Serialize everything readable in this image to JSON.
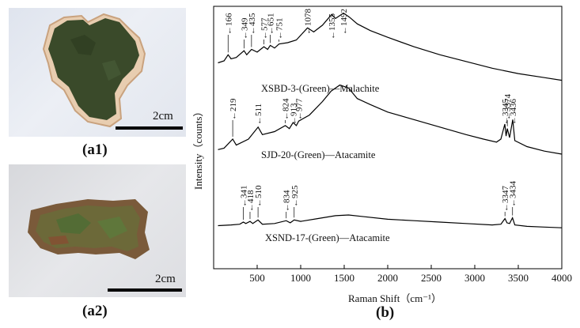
{
  "panels": {
    "a1": {
      "label": "(a1)",
      "scale_label": "2cm"
    },
    "a2": {
      "label": "(a2)",
      "scale_label": "2cm"
    },
    "b": {
      "label": "(b)"
    }
  },
  "colors": {
    "malachite_sample": "#3a4a2a",
    "atacamite_sample": "#6a6a3a",
    "line": "#000000"
  },
  "chart_data": {
    "type": "line",
    "xlabel": "Raman Shift（cm⁻¹）",
    "ylabel": "Intensity（counts）",
    "xlim": [
      0,
      4000
    ],
    "x_ticks": [
      500,
      1000,
      1500,
      2000,
      2500,
      3000,
      3500,
      4000
    ],
    "x_tick_labels": [
      "500",
      "1000",
      "1500",
      "2000",
      "2500",
      "3000",
      "3500",
      "4000"
    ],
    "y_ticks_shown": false,
    "series": [
      {
        "name": "XSBD-3-(Green)—Malachite",
        "offset_level": 3,
        "profile": [
          [
            50,
            0.3
          ],
          [
            120,
            0.33
          ],
          [
            166,
            0.42
          ],
          [
            200,
            0.36
          ],
          [
            260,
            0.38
          ],
          [
            349,
            0.48
          ],
          [
            380,
            0.42
          ],
          [
            435,
            0.5
          ],
          [
            500,
            0.46
          ],
          [
            577,
            0.54
          ],
          [
            620,
            0.5
          ],
          [
            651,
            0.56
          ],
          [
            700,
            0.52
          ],
          [
            751,
            0.58
          ],
          [
            850,
            0.6
          ],
          [
            950,
            0.64
          ],
          [
            1078,
            0.82
          ],
          [
            1150,
            0.76
          ],
          [
            1250,
            0.86
          ],
          [
            1355,
            1.02
          ],
          [
            1400,
            0.96
          ],
          [
            1492,
            1.04
          ],
          [
            1560,
            0.98
          ],
          [
            1650,
            0.88
          ],
          [
            1800,
            0.78
          ],
          [
            2000,
            0.68
          ],
          [
            2300,
            0.54
          ],
          [
            2600,
            0.42
          ],
          [
            2900,
            0.32
          ],
          [
            3200,
            0.22
          ],
          [
            3500,
            0.14
          ],
          [
            3800,
            0.08
          ],
          [
            4000,
            0.04
          ]
        ],
        "peaks": [
          166,
          349,
          435,
          577,
          651,
          751,
          1078,
          1355,
          1492
        ]
      },
      {
        "name": "SJD-20-(Green)—Atacamite",
        "offset_level": 2,
        "profile": [
          [
            50,
            0.06
          ],
          [
            120,
            0.08
          ],
          [
            219,
            0.2
          ],
          [
            260,
            0.12
          ],
          [
            400,
            0.2
          ],
          [
            511,
            0.36
          ],
          [
            560,
            0.26
          ],
          [
            700,
            0.3
          ],
          [
            824,
            0.38
          ],
          [
            870,
            0.34
          ],
          [
            913,
            0.42
          ],
          [
            950,
            0.38
          ],
          [
            977,
            0.44
          ],
          [
            1100,
            0.52
          ],
          [
            1250,
            0.7
          ],
          [
            1350,
            0.84
          ],
          [
            1450,
            0.92
          ],
          [
            1550,
            0.88
          ],
          [
            1650,
            0.74
          ],
          [
            1800,
            0.66
          ],
          [
            2000,
            0.56
          ],
          [
            2300,
            0.46
          ],
          [
            2600,
            0.36
          ],
          [
            2900,
            0.26
          ],
          [
            3100,
            0.2
          ],
          [
            3250,
            0.16
          ],
          [
            3300,
            0.2
          ],
          [
            3345,
            0.4
          ],
          [
            3360,
            0.24
          ],
          [
            3374,
            0.34
          ],
          [
            3400,
            0.22
          ],
          [
            3436,
            0.46
          ],
          [
            3460,
            0.18
          ],
          [
            3600,
            0.1
          ],
          [
            3800,
            0.04
          ],
          [
            4000,
            0.0
          ]
        ],
        "peaks": [
          219,
          511,
          824,
          913,
          977,
          3345,
          3374,
          3436
        ]
      },
      {
        "name": "XSND-17-(Green)—Atacamite",
        "offset_level": 1,
        "profile": [
          [
            50,
            0.1
          ],
          [
            200,
            0.12
          ],
          [
            300,
            0.14
          ],
          [
            341,
            0.2
          ],
          [
            370,
            0.16
          ],
          [
            418,
            0.22
          ],
          [
            450,
            0.16
          ],
          [
            510,
            0.26
          ],
          [
            560,
            0.14
          ],
          [
            700,
            0.16
          ],
          [
            834,
            0.24
          ],
          [
            880,
            0.18
          ],
          [
            925,
            0.26
          ],
          [
            1000,
            0.22
          ],
          [
            1200,
            0.3
          ],
          [
            1400,
            0.38
          ],
          [
            1550,
            0.4
          ],
          [
            1700,
            0.36
          ],
          [
            2000,
            0.28
          ],
          [
            2300,
            0.24
          ],
          [
            2600,
            0.2
          ],
          [
            2900,
            0.16
          ],
          [
            3200,
            0.12
          ],
          [
            3300,
            0.14
          ],
          [
            3347,
            0.3
          ],
          [
            3370,
            0.18
          ],
          [
            3400,
            0.16
          ],
          [
            3434,
            0.32
          ],
          [
            3460,
            0.12
          ],
          [
            3600,
            0.08
          ],
          [
            3800,
            0.06
          ],
          [
            4000,
            0.04
          ]
        ],
        "peaks": [
          341,
          418,
          510,
          834,
          925,
          3347,
          3434
        ]
      }
    ]
  }
}
